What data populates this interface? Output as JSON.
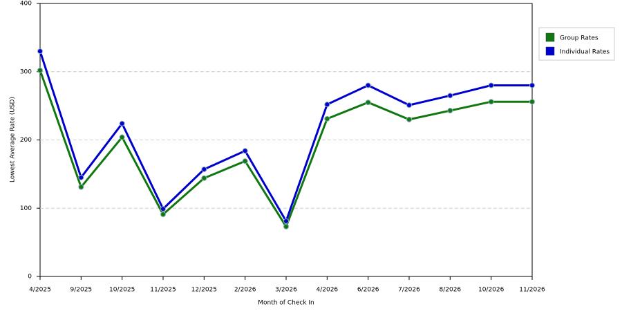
{
  "chart_data": {
    "type": "line",
    "x_label": "Month of Check In",
    "y_label": "Lowest Average Rate (USD)",
    "categories": [
      "4/2025",
      "9/2025",
      "10/2025",
      "11/2025",
      "12/2025",
      "2/2026",
      "3/2026",
      "4/2026",
      "6/2026",
      "7/2026",
      "8/2026",
      "10/2026",
      "11/2026"
    ],
    "series": [
      {
        "name": "Group Rates",
        "color": "#117711",
        "values": [
          302,
          131,
          204,
          91,
          144,
          169,
          73,
          231,
          255,
          230,
          243,
          256,
          256
        ]
      },
      {
        "name": "Individual Rates",
        "color": "#0000cc",
        "values": [
          330,
          145,
          224,
          99,
          157,
          184,
          81,
          252,
          280,
          251,
          265,
          280,
          280
        ]
      }
    ],
    "ylim": [
      0,
      400
    ],
    "yticks": [
      0,
      100,
      200,
      300,
      400
    ],
    "grid": true,
    "legend": "right"
  }
}
